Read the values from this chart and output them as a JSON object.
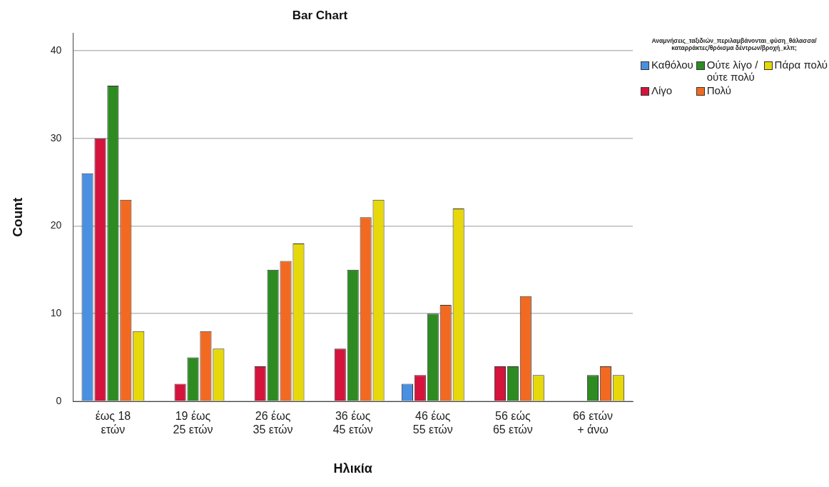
{
  "chart_data": {
    "type": "bar",
    "title": "Bar Chart",
    "xlabel": "Ηλικία",
    "ylabel": "Count",
    "legend_title": "Αναμνήσεις_ταξιδιών_περιλαμβάνονται_φύση_θάλασσα/καταρράκτες/θρόισμα δέντρων/βροχή_κλπ;",
    "categories": [
      "έως 18 ετών",
      "19 έως 25 ετών",
      "26 έως 35 ετών",
      "36 έως 45 ετών",
      "46 έως 55 ετών",
      "56 εώς 65 ετών",
      "66 ετών + άνω"
    ],
    "series": [
      {
        "name": "Καθόλου",
        "color": "#4a90e2",
        "values": [
          26,
          null,
          null,
          null,
          2,
          null,
          null
        ]
      },
      {
        "name": "Λίγο",
        "color": "#d6133c",
        "values": [
          30,
          2,
          4,
          6,
          3,
          4,
          null
        ]
      },
      {
        "name": "Ούτε λίγο / ούτε πολύ",
        "color": "#2e8b22",
        "values": [
          36,
          5,
          15,
          15,
          10,
          4,
          3
        ]
      },
      {
        "name": "Πολύ",
        "color": "#f26a21",
        "values": [
          23,
          8,
          16,
          21,
          11,
          12,
          4
        ]
      },
      {
        "name": "Πάρα πολύ",
        "color": "#e6d80a",
        "values": [
          8,
          6,
          18,
          23,
          22,
          3,
          3
        ]
      }
    ],
    "ylim": [
      0,
      42
    ],
    "yticks": [
      0,
      10,
      20,
      30,
      40
    ],
    "grid": "y",
    "legend": "top right"
  }
}
